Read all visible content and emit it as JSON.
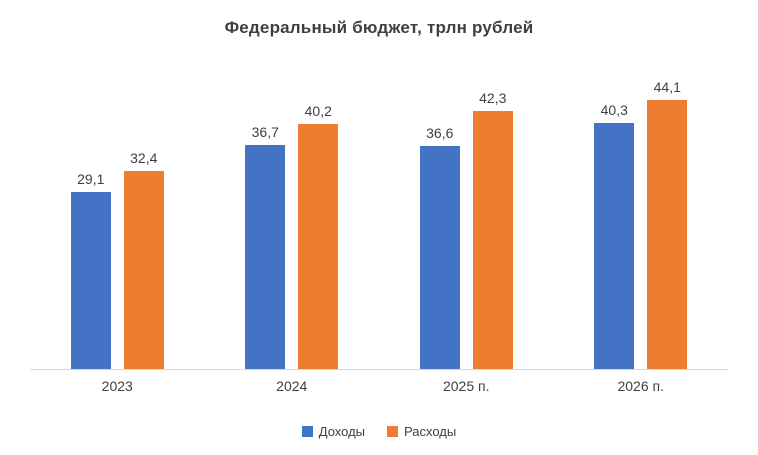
{
  "title": "Федеральный бюджет, трлн рублей",
  "chart_data": {
    "type": "bar",
    "title": "Федеральный бюджет, трлн рублей",
    "categories": [
      "2023",
      "2024",
      "2025 п.",
      "2026 п."
    ],
    "series": [
      {
        "name": "Доходы",
        "color": "#4472c4",
        "values": [
          29.1,
          36.7,
          36.6,
          40.3
        ],
        "labels": [
          "29,1",
          "36,7",
          "36,6",
          "40,3"
        ]
      },
      {
        "name": "Расходы",
        "color": "#ed7d31",
        "values": [
          32.4,
          40.2,
          42.3,
          44.1
        ],
        "labels": [
          "32,4",
          "40,2",
          "42,3",
          "44,1"
        ]
      }
    ],
    "xlabel": "",
    "ylabel": "",
    "ylim": [
      0,
      52
    ],
    "grid": false,
    "value_labels": true,
    "decimal_separator": ",",
    "legend_position": "bottom"
  },
  "legend": {
    "items": [
      {
        "label": "Доходы",
        "color": "#4472c4"
      },
      {
        "label": "Расходы",
        "color": "#ed7d31"
      }
    ]
  }
}
